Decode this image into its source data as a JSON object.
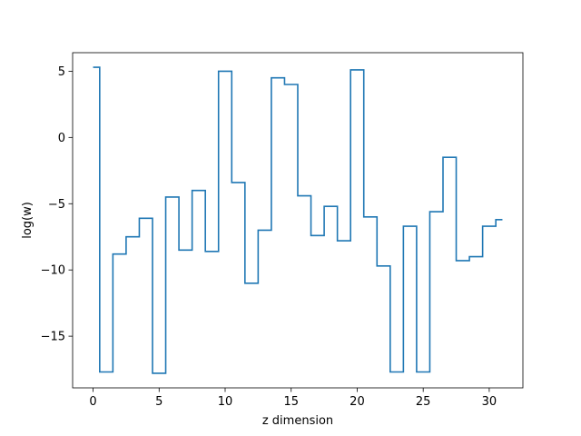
{
  "chart_data": {
    "type": "line",
    "drawstyle": "steps-mid",
    "title": "",
    "xlabel": "z dimension",
    "ylabel": "log(w)",
    "xlim": [
      -1.55,
      32.55
    ],
    "ylim": [
      -18.9,
      6.4
    ],
    "xticks": [
      0,
      5,
      10,
      15,
      20,
      25,
      30
    ],
    "xtick_labels": [
      "0",
      "5",
      "10",
      "15",
      "20",
      "25",
      "30"
    ],
    "yticks": [
      5,
      0,
      -5,
      -10,
      -15
    ],
    "ytick_labels": [
      "5",
      "0",
      "−5",
      "−10",
      "−15"
    ],
    "grid": false,
    "legend": "none",
    "series": [
      {
        "color": "#1f77b4",
        "x": [
          0,
          1,
          2,
          3,
          4,
          5,
          6,
          7,
          8,
          9,
          10,
          11,
          12,
          13,
          14,
          15,
          16,
          17,
          18,
          19,
          20,
          21,
          22,
          23,
          24,
          25,
          26,
          27,
          28,
          29,
          30,
          31
        ],
        "y": [
          5.3,
          -17.7,
          -8.8,
          -7.5,
          -6.1,
          -17.8,
          -4.5,
          -8.5,
          -4.0,
          -8.6,
          5.0,
          -3.4,
          -11.0,
          -7.0,
          4.5,
          4.0,
          -4.4,
          -7.4,
          -5.2,
          -7.8,
          5.1,
          -6.0,
          -9.7,
          -17.7,
          -6.7,
          -17.7,
          -5.6,
          -1.5,
          -9.3,
          -9.0,
          -6.7,
          -6.2
        ]
      }
    ]
  }
}
